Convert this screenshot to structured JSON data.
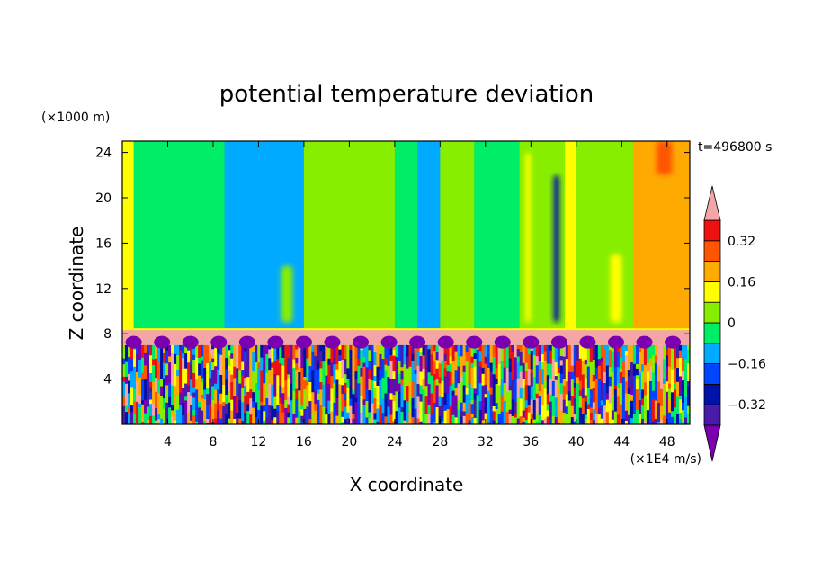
{
  "chart_data": {
    "type": "heatmap",
    "title": "potential temperature deviation",
    "xlabel": "X coordinate",
    "ylabel": "Z coordinate",
    "x_unit": "(×1E4 m/s)",
    "y_unit": "(×1000 m)",
    "time_label": "t=496800 s",
    "xlim": [
      0,
      50
    ],
    "ylim": [
      0,
      25
    ],
    "x_ticks": [
      4,
      8,
      12,
      16,
      20,
      24,
      28,
      32,
      36,
      40,
      44,
      48
    ],
    "y_ticks": [
      4,
      8,
      12,
      16,
      20,
      24
    ],
    "colorbar": {
      "levels": [
        -0.4,
        -0.32,
        -0.24,
        -0.16,
        -0.08,
        0,
        0.08,
        0.16,
        0.24,
        0.32,
        0.4
      ],
      "tick_labels": [
        "0.32",
        "0.16",
        "0",
        "−0.16",
        "−0.32"
      ],
      "tick_values": [
        0.32,
        0.16,
        0,
        -0.16,
        -0.32
      ],
      "colors": [
        "#7a00b0",
        "#4a1aa8",
        "#0012a8",
        "#0044ff",
        "#00aaff",
        "#00ee66",
        "#88ee00",
        "#ffff00",
        "#ffaa00",
        "#ff5500",
        "#ee1111",
        "#f4a6a6"
      ]
    },
    "columns": [
      {
        "x0": 0,
        "x1": 1,
        "value": 0.1
      },
      {
        "x0": 1,
        "x1": 9,
        "value": -0.02
      },
      {
        "x0": 9,
        "x1": 16,
        "value": -0.1
      },
      {
        "x0": 16,
        "x1": 18,
        "value": 0.02
      },
      {
        "x0": 18,
        "x1": 24,
        "value": 0.04
      },
      {
        "x0": 24,
        "x1": 26,
        "value": -0.03
      },
      {
        "x0": 26,
        "x1": 28,
        "value": -0.1
      },
      {
        "x0": 28,
        "x1": 31,
        "value": 0.04
      },
      {
        "x0": 31,
        "x1": 35,
        "value": -0.02
      },
      {
        "x0": 35,
        "x1": 39,
        "value": 0.04
      },
      {
        "x0": 39,
        "x1": 40,
        "value": 0.1
      },
      {
        "x0": 40,
        "x1": 45,
        "value": 0.04
      },
      {
        "x0": 45,
        "x1": 50,
        "value": 0.18
      }
    ],
    "patches": [
      {
        "x0": 2,
        "x1": 8,
        "z0": 16,
        "z1": 24,
        "value": -0.02
      },
      {
        "x0": 10,
        "x1": 12,
        "z0": 9,
        "z1": 17,
        "value": -0.1
      },
      {
        "x0": 14,
        "x1": 15,
        "z0": 9,
        "z1": 14,
        "value": 0.02
      },
      {
        "x0": 20,
        "x1": 22,
        "z0": 9,
        "z1": 20,
        "value": 0.04
      },
      {
        "x0": 35.5,
        "x1": 36,
        "z0": 9,
        "z1": 24,
        "value": 0.1
      },
      {
        "x0": 38,
        "x1": 38.5,
        "z0": 9,
        "z1": 22,
        "value": -0.25
      },
      {
        "x0": 43,
        "x1": 44,
        "z0": 9,
        "z1": 15,
        "value": 0.1
      },
      {
        "x0": 46,
        "x1": 49,
        "z0": 15,
        "z1": 25,
        "value": 0.18
      },
      {
        "x0": 47,
        "x1": 48.5,
        "z0": 22,
        "z1": 25,
        "value": 0.25
      }
    ],
    "inversion_layer": {
      "z0": 7.0,
      "z1": 8.4,
      "value": 0.4
    },
    "dark_blobs": [
      1,
      3.5,
      6,
      8.5,
      11,
      13.5,
      16,
      18.5,
      21,
      23.5,
      26,
      28.5,
      31,
      33.5,
      36,
      38.5,
      41,
      43.5,
      46,
      48.5
    ],
    "boundary_layer_top": 7.0
  }
}
